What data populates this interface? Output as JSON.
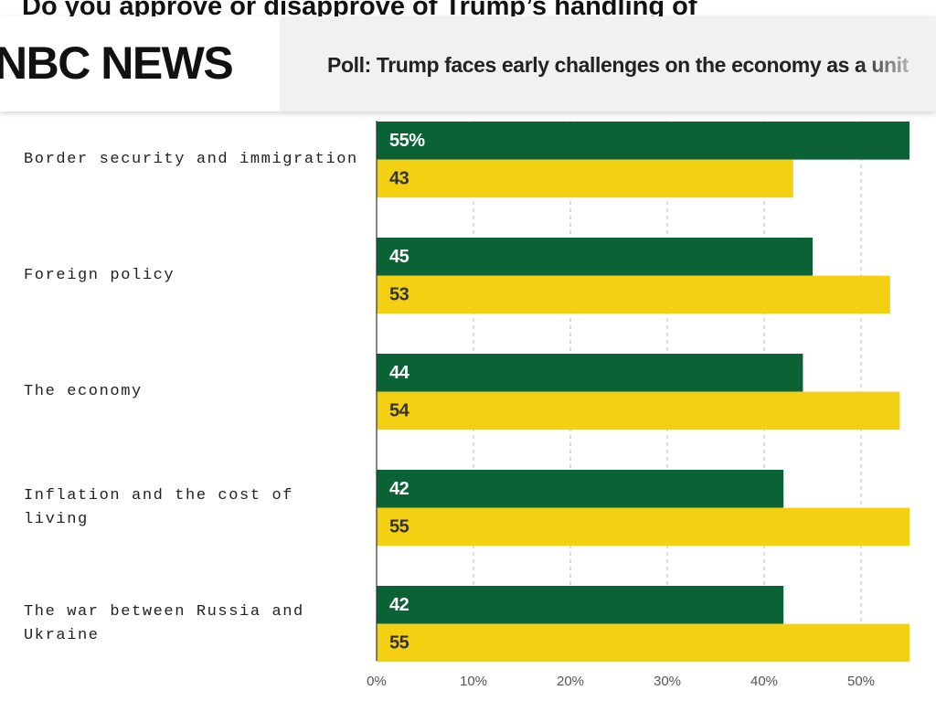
{
  "page_title": "Do you approve or disapprove of Trump’s handling of",
  "header": {
    "logo": "NBC NEWS",
    "headline": "Poll: Trump faces early challenges on the economy as a unit"
  },
  "chart_data": {
    "type": "bar",
    "orientation": "horizontal",
    "categories": [
      "Border security and immigration",
      "Foreign policy",
      "The economy",
      "Inflation and the cost of living",
      "The war between Russia and Ukraine"
    ],
    "series": [
      {
        "color": "#0b6335",
        "values": [
          55,
          45,
          44,
          42,
          42
        ],
        "value_labels": [
          "55%",
          "45",
          "44",
          "42",
          "42"
        ]
      },
      {
        "color": "#f4d013",
        "values": [
          43,
          53,
          54,
          55,
          55
        ]
      }
    ],
    "xlim": [
      0,
      55
    ],
    "xticks": [
      {
        "value": 0,
        "label": "0%"
      },
      {
        "value": 10,
        "label": "10%"
      },
      {
        "value": 20,
        "label": "20%"
      },
      {
        "value": 30,
        "label": "30%"
      },
      {
        "value": 40,
        "label": "40%"
      },
      {
        "value": 50,
        "label": "50%"
      }
    ],
    "grid": true
  }
}
